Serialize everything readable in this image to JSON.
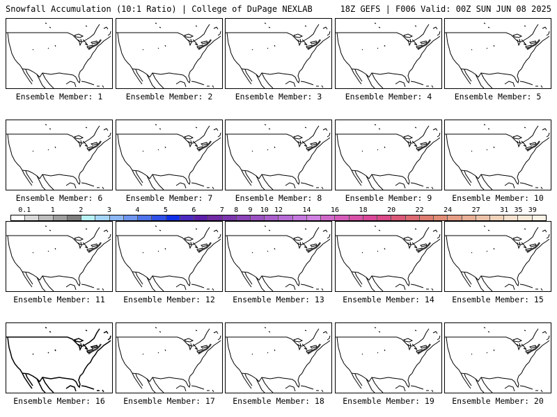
{
  "header": {
    "left": "Snowfall Accumulation (10:1 Ratio) | College of DuPage NEXLAB",
    "right": "18Z GEFS | F006 Valid: 00Z SUN JUN 08 2025"
  },
  "panels": [
    {
      "caption": "Ensemble Member: 1"
    },
    {
      "caption": "Ensemble Member: 2"
    },
    {
      "caption": "Ensemble Member: 3"
    },
    {
      "caption": "Ensemble Member: 4"
    },
    {
      "caption": "Ensemble Member: 5"
    },
    {
      "caption": "Ensemble Member: 6"
    },
    {
      "caption": "Ensemble Member: 7"
    },
    {
      "caption": "Ensemble Member: 8"
    },
    {
      "caption": "Ensemble Member: 9"
    },
    {
      "caption": "Ensemble Member: 10"
    },
    {
      "caption": "Ensemble Member: 11"
    },
    {
      "caption": "Ensemble Member: 12"
    },
    {
      "caption": "Ensemble Member: 13"
    },
    {
      "caption": "Ensemble Member: 14"
    },
    {
      "caption": "Ensemble Member: 15"
    },
    {
      "caption": "Ensemble Member: 16"
    },
    {
      "caption": "Ensemble Member: 17"
    },
    {
      "caption": "Ensemble Member: 18"
    },
    {
      "caption": "Ensemble Member: 19"
    },
    {
      "caption": "Ensemble Member: 20"
    }
  ],
  "colorbar": {
    "labels": [
      "0.1",
      "1",
      "2",
      "3",
      "4",
      "5",
      "6",
      "7",
      "8",
      "9",
      "10",
      "12",
      "14",
      "16",
      "18",
      "20",
      "22",
      "24",
      "27",
      "31",
      "35",
      "39"
    ],
    "colors": [
      "#ffffff",
      "#d9d9d9",
      "#bdbdbd",
      "#9e9e9e",
      "#7e7e7e",
      "#b7f0f3",
      "#a6d4f6",
      "#8cb6f4",
      "#6f95ee",
      "#4f73ea",
      "#3150e6",
      "#1030e8",
      "#4c2ac0",
      "#5d1fa8",
      "#6f2aa4",
      "#7b36ae",
      "#8a44b8",
      "#9a51c2",
      "#a85fcc",
      "#b66cd5",
      "#c478dd",
      "#d080e0",
      "#d068c8",
      "#d45cb8",
      "#d650a8",
      "#d84898",
      "#d84a88",
      "#da5878",
      "#dc6a72",
      "#de7c70",
      "#e08c76",
      "#e49e86",
      "#e8b096",
      "#ecc2a8",
      "#f0d2b8",
      "#f4e0cc",
      "#f8ead8",
      "#fbf2e6"
    ]
  }
}
